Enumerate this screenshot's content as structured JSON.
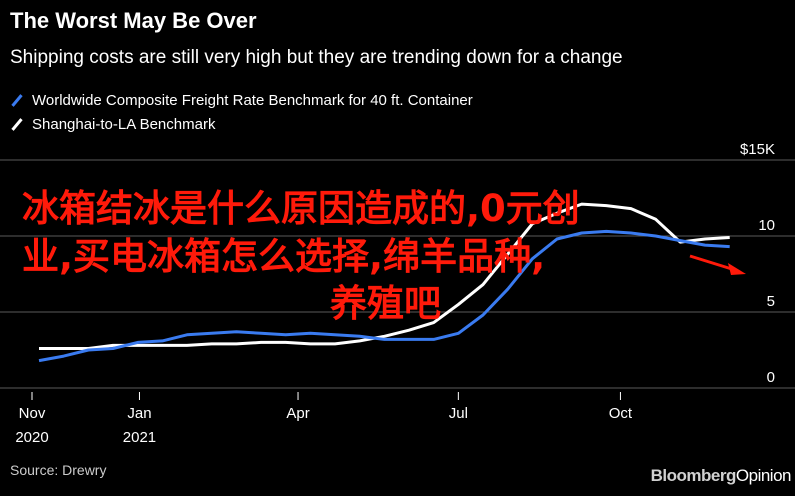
{
  "header": {
    "title": "The Worst May Be Over",
    "subtitle": "Shipping costs are still very high but they are trending down for a change"
  },
  "overlay": {
    "lines": [
      "冰箱结冰是什么原因造成的,0元创",
      "业,买电冰箱怎么选择,绵羊品种,",
      "养殖吧"
    ],
    "color": "#ff1a0a"
  },
  "footer": {
    "source": "Source: Drewry",
    "brand_main": "Bloomberg",
    "brand_sub": "Opinion"
  },
  "chart_data": {
    "type": "line",
    "title": "The Worst May Be Over",
    "subtitle": "Shipping costs are still very high but they are trending down for a change",
    "ylim": [
      0,
      15
    ],
    "yticks": [
      0,
      5,
      10,
      15
    ],
    "ytick_labels": [
      "0",
      "5",
      "10",
      "$15K"
    ],
    "xlim": [
      "2020-11-01",
      "2021-12-09"
    ],
    "xticks": [
      {
        "date": "2020-11-01",
        "label": "Nov",
        "sublabel": "2020"
      },
      {
        "date": "2021-01-01",
        "label": "Jan",
        "sublabel": "2021"
      },
      {
        "date": "2021-04-01",
        "label": "Apr",
        "sublabel": ""
      },
      {
        "date": "2021-07-01",
        "label": "Jul",
        "sublabel": ""
      },
      {
        "date": "2021-10-01",
        "label": "Oct",
        "sublabel": ""
      }
    ],
    "grid": true,
    "legend_position": "top-left",
    "series": [
      {
        "name": "Worldwide Composite Freight Rate Benchmark for 40 ft. Container",
        "color": "#3a7bf0",
        "points": [
          [
            "2020-11-05",
            1.8
          ],
          [
            "2020-11-19",
            2.1
          ],
          [
            "2020-12-03",
            2.5
          ],
          [
            "2020-12-17",
            2.6
          ],
          [
            "2020-12-31",
            3.0
          ],
          [
            "2021-01-14",
            3.1
          ],
          [
            "2021-01-28",
            3.5
          ],
          [
            "2021-02-11",
            3.6
          ],
          [
            "2021-02-25",
            3.7
          ],
          [
            "2021-03-11",
            3.6
          ],
          [
            "2021-03-25",
            3.5
          ],
          [
            "2021-04-08",
            3.6
          ],
          [
            "2021-04-22",
            3.5
          ],
          [
            "2021-05-06",
            3.4
          ],
          [
            "2021-05-20",
            3.2
          ],
          [
            "2021-06-03",
            3.2
          ],
          [
            "2021-06-17",
            3.2
          ],
          [
            "2021-07-01",
            3.6
          ],
          [
            "2021-07-15",
            4.8
          ],
          [
            "2021-07-29",
            6.5
          ],
          [
            "2021-08-12",
            8.5
          ],
          [
            "2021-08-26",
            9.8
          ],
          [
            "2021-09-09",
            10.2
          ],
          [
            "2021-09-23",
            10.3
          ],
          [
            "2021-10-07",
            10.2
          ],
          [
            "2021-10-21",
            10.0
          ],
          [
            "2021-11-04",
            9.7
          ],
          [
            "2021-11-18",
            9.4
          ],
          [
            "2021-12-02",
            9.3
          ]
        ]
      },
      {
        "name": "Shanghai-to-LA Benchmark",
        "color": "#ffffff",
        "points": [
          [
            "2020-11-05",
            2.6
          ],
          [
            "2020-11-19",
            2.6
          ],
          [
            "2020-12-03",
            2.6
          ],
          [
            "2020-12-17",
            2.8
          ],
          [
            "2020-12-31",
            2.8
          ],
          [
            "2021-01-14",
            2.8
          ],
          [
            "2021-01-28",
            2.8
          ],
          [
            "2021-02-11",
            2.9
          ],
          [
            "2021-02-25",
            2.9
          ],
          [
            "2021-03-11",
            3.0
          ],
          [
            "2021-03-25",
            3.0
          ],
          [
            "2021-04-08",
            2.9
          ],
          [
            "2021-04-22",
            2.9
          ],
          [
            "2021-05-06",
            3.1
          ],
          [
            "2021-05-20",
            3.4
          ],
          [
            "2021-06-03",
            3.8
          ],
          [
            "2021-06-17",
            4.3
          ],
          [
            "2021-07-01",
            5.5
          ],
          [
            "2021-07-15",
            6.8
          ],
          [
            "2021-07-29",
            8.8
          ],
          [
            "2021-08-12",
            10.8
          ],
          [
            "2021-08-26",
            11.5
          ],
          [
            "2021-09-09",
            12.1
          ],
          [
            "2021-09-23",
            12.0
          ],
          [
            "2021-10-07",
            11.8
          ],
          [
            "2021-10-21",
            11.1
          ],
          [
            "2021-11-04",
            9.6
          ],
          [
            "2021-11-18",
            9.8
          ],
          [
            "2021-12-02",
            9.9
          ]
        ]
      }
    ]
  }
}
